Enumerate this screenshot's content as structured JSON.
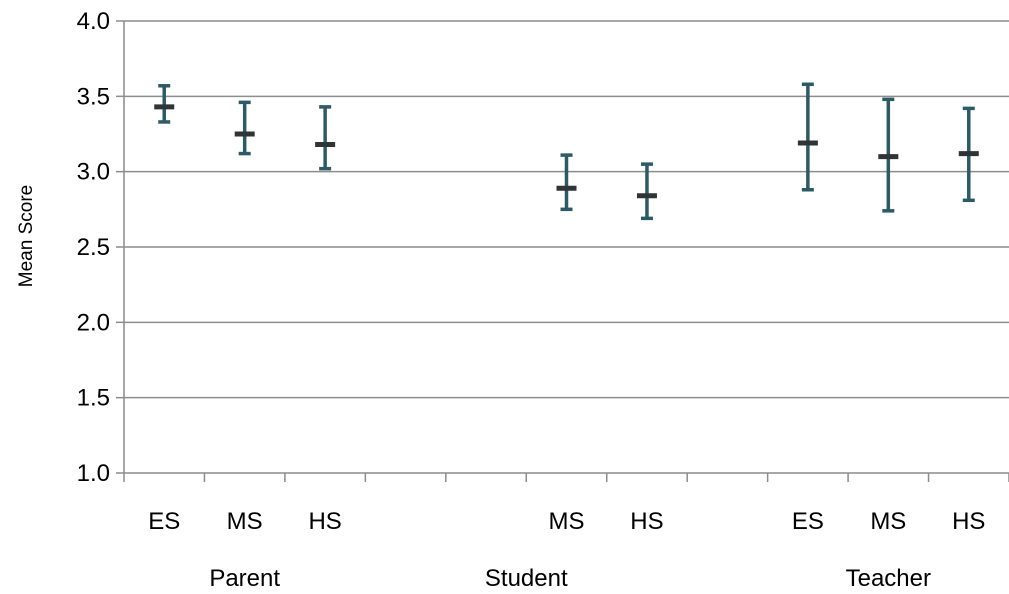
{
  "chart_data": {
    "type": "errorbar",
    "title": "",
    "xlabel": "",
    "ylabel": "Mean Score",
    "ylim": [
      1.0,
      4.0
    ],
    "yticks": [
      "1.0",
      "1.5",
      "2.0",
      "2.5",
      "3.0",
      "3.5",
      "4.0"
    ],
    "grid": true,
    "categories": [
      "ES",
      "MS",
      "HS",
      "",
      "",
      "MS",
      "HS",
      "",
      "ES",
      "MS",
      "HS"
    ],
    "groups": [
      {
        "label": "Parent"
      },
      {
        "label": "Student"
      },
      {
        "label": "Teacher"
      }
    ],
    "points": [
      {
        "group": "Parent",
        "category": "ES",
        "mean": 3.43,
        "low": 3.33,
        "high": 3.57
      },
      {
        "group": "Parent",
        "category": "MS",
        "mean": 3.25,
        "low": 3.12,
        "high": 3.46
      },
      {
        "group": "Parent",
        "category": "HS",
        "mean": 3.18,
        "low": 3.02,
        "high": 3.43
      },
      {
        "group": "Student",
        "category": "MS",
        "mean": 2.89,
        "low": 2.75,
        "high": 3.11
      },
      {
        "group": "Student",
        "category": "HS",
        "mean": 2.84,
        "low": 2.69,
        "high": 3.05
      },
      {
        "group": "Teacher",
        "category": "ES",
        "mean": 3.19,
        "low": 2.88,
        "high": 3.58
      },
      {
        "group": "Teacher",
        "category": "MS",
        "mean": 3.1,
        "low": 2.74,
        "high": 3.48
      },
      {
        "group": "Teacher",
        "category": "HS",
        "mean": 3.12,
        "low": 2.81,
        "high": 3.42
      }
    ],
    "colors": {
      "errorbar": "#2e5a63",
      "mean_marker": "#2f3436",
      "gridline": "#8c8c8c",
      "axis": "#8c8c8c"
    }
  }
}
